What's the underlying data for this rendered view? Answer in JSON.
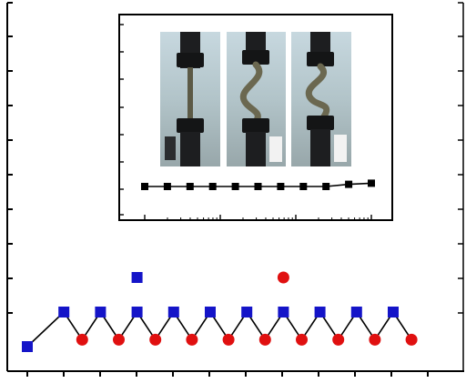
{
  "chart_data": [
    {
      "type": "scatter",
      "title": "",
      "xlabel": "",
      "ylabel": "",
      "grid": false,
      "legend": "none",
      "xlim": [
        0,
        12
      ],
      "ylim": [
        0,
        10
      ],
      "series": [
        {
          "marker": "square",
          "color": "#1414c8",
          "points": [
            [
              0,
              0
            ],
            [
              1,
              1
            ],
            [
              2,
              1
            ],
            [
              3,
              1
            ],
            [
              4,
              1
            ],
            [
              5,
              1
            ],
            [
              6,
              1
            ],
            [
              7,
              1
            ],
            [
              8,
              1
            ],
            [
              9,
              1
            ],
            [
              10,
              1
            ]
          ],
          "connected": true
        },
        {
          "marker": "circle",
          "color": "#e01010",
          "points": [
            [
              1.5,
              0.2
            ],
            [
              2.5,
              0.2
            ],
            [
              3.5,
              0.2
            ],
            [
              4.5,
              0.2
            ],
            [
              5.5,
              0.2
            ],
            [
              6.5,
              0.2
            ],
            [
              7.5,
              0.2
            ],
            [
              8.5,
              0.2
            ],
            [
              9.5,
              0.2
            ],
            [
              10.5,
              0.2
            ]
          ],
          "connected": true
        },
        {
          "marker": "square",
          "color": "#1414c8",
          "points": [
            [
              3,
              2
            ]
          ],
          "connected": false
        },
        {
          "marker": "circle",
          "color": "#e01010",
          "points": [
            [
              7,
              2
            ]
          ],
          "connected": false
        }
      ]
    },
    {
      "type": "line",
      "title": "",
      "xlabel": "",
      "ylabel": "",
      "xscale": "log",
      "grid": false,
      "legend": "none",
      "series": [
        {
          "marker": "square",
          "color": "#000000",
          "points": [
            [
              1,
              1
            ],
            [
              3,
              1
            ],
            [
              5,
              1
            ],
            [
              7,
              1
            ],
            [
              9,
              1
            ],
            [
              11,
              1
            ],
            [
              13,
              1
            ],
            [
              15,
              1
            ],
            [
              17,
              1
            ],
            [
              19,
              1.08
            ],
            [
              21,
              1.12
            ]
          ]
        }
      ]
    }
  ],
  "inset": {
    "photos": [
      "specimen-photo-straight",
      "specimen-photo-bent",
      "specimen-photo-buckled"
    ]
  }
}
